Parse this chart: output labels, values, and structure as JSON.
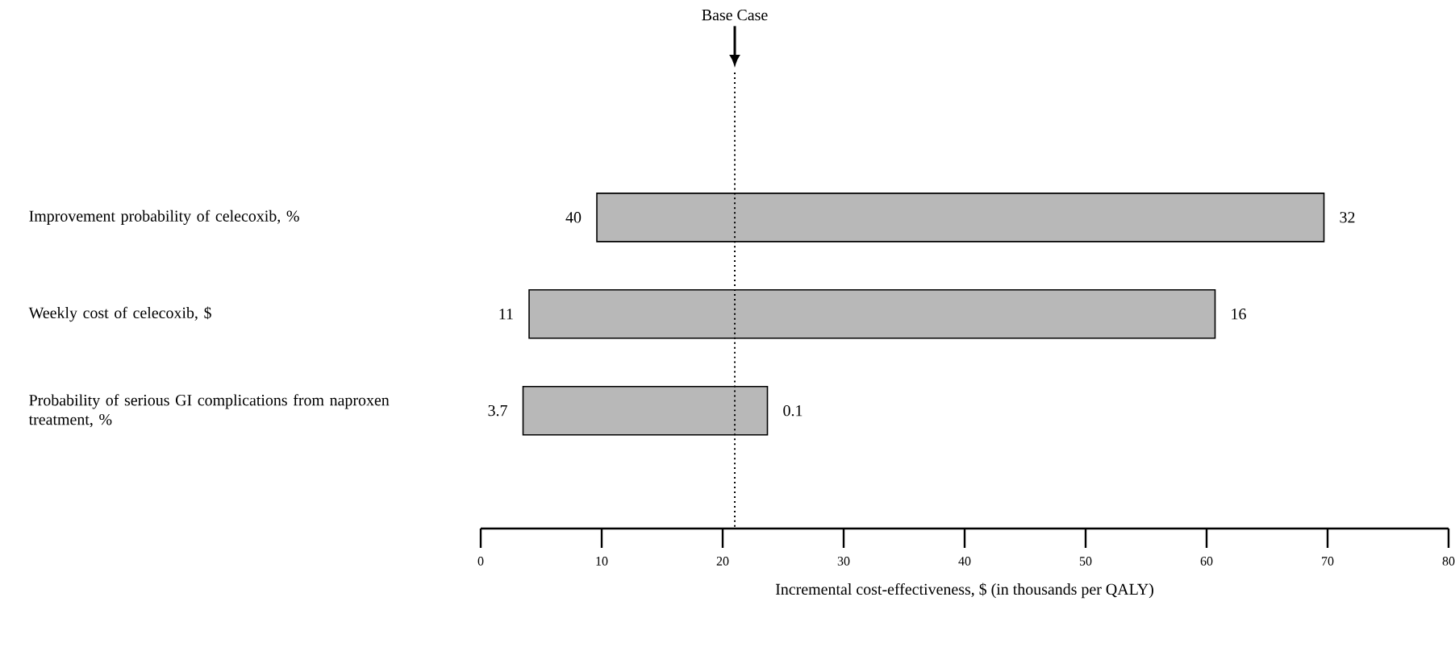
{
  "chart_data": {
    "type": "bar",
    "orientation": "horizontal",
    "categories": [
      "Improvement probability of celecoxib, %",
      "Weekly cost of celecoxib, $",
      "Probability of serious GI complications from naproxen treatment, %"
    ],
    "base": [
      9.6,
      4.0,
      3.5
    ],
    "values": [
      60.1,
      56.7,
      20.2
    ],
    "color": "#b8b8b8",
    "xlim": [
      0,
      80
    ],
    "xticks": [
      0,
      10,
      20,
      30,
      40,
      50,
      60,
      70,
      80
    ],
    "xlabel": "Incremental cost-effectiveness, $ (in thousands per QALY)",
    "ref_lines": [
      {
        "axis": "x",
        "value": 21,
        "label": "Base Case",
        "line_style": "dotted",
        "color": "#000000"
      }
    ],
    "annotations": [
      {
        "text": "40",
        "x": 9.6,
        "y": "Improvement probability of celecoxib, %"
      },
      {
        "text": "32",
        "x": 69.7,
        "y": "Improvement probability of celecoxib, %"
      },
      {
        "text": "11",
        "x": 4.0,
        "y": "Weekly cost of celecoxib, $"
      },
      {
        "text": "16",
        "x": 60.7,
        "y": "Weekly cost of celecoxib, $"
      },
      {
        "text": "3.7",
        "x": 3.5,
        "y": "Probability of serious GI complications from naproxen treatment, %"
      },
      {
        "text": "0.1",
        "x": 23.7,
        "y": "Probability of serious GI complications from naproxen treatment, %"
      }
    ]
  }
}
